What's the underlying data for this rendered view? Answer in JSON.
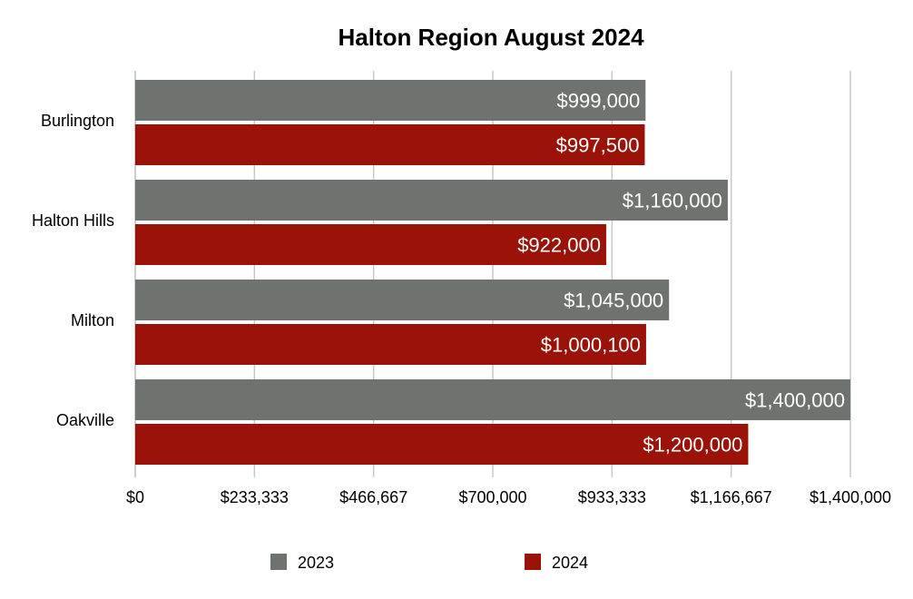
{
  "chart_data": {
    "type": "bar",
    "orientation": "horizontal",
    "title": "Halton Region August 2024",
    "categories": [
      "Burlington",
      "Halton Hills",
      "Milton",
      "Oakville"
    ],
    "series": [
      {
        "name": "2023",
        "color": "#6f7370",
        "values": [
          999000,
          1160000,
          1045000,
          1400000
        ],
        "labels": [
          "$999,000",
          "$1,160,000",
          "$1,045,000",
          "$1,400,000"
        ]
      },
      {
        "name": "2024",
        "color": "#9b1208",
        "values": [
          997500,
          922000,
          1000100,
          1200000
        ],
        "labels": [
          "$997,500",
          "$922,000",
          "$1,000,100",
          "$1,200,000"
        ]
      }
    ],
    "xlim": [
      0,
      1400000
    ],
    "xticks": [
      0,
      233333,
      466667,
      700000,
      933333,
      1166667,
      1400000
    ],
    "xtick_labels": [
      "$0",
      "$233,333",
      "$466,667",
      "$700,000",
      "$933,333",
      "$1,166,667",
      "$1,400,000"
    ],
    "grid": true,
    "legend_position": "bottom"
  }
}
